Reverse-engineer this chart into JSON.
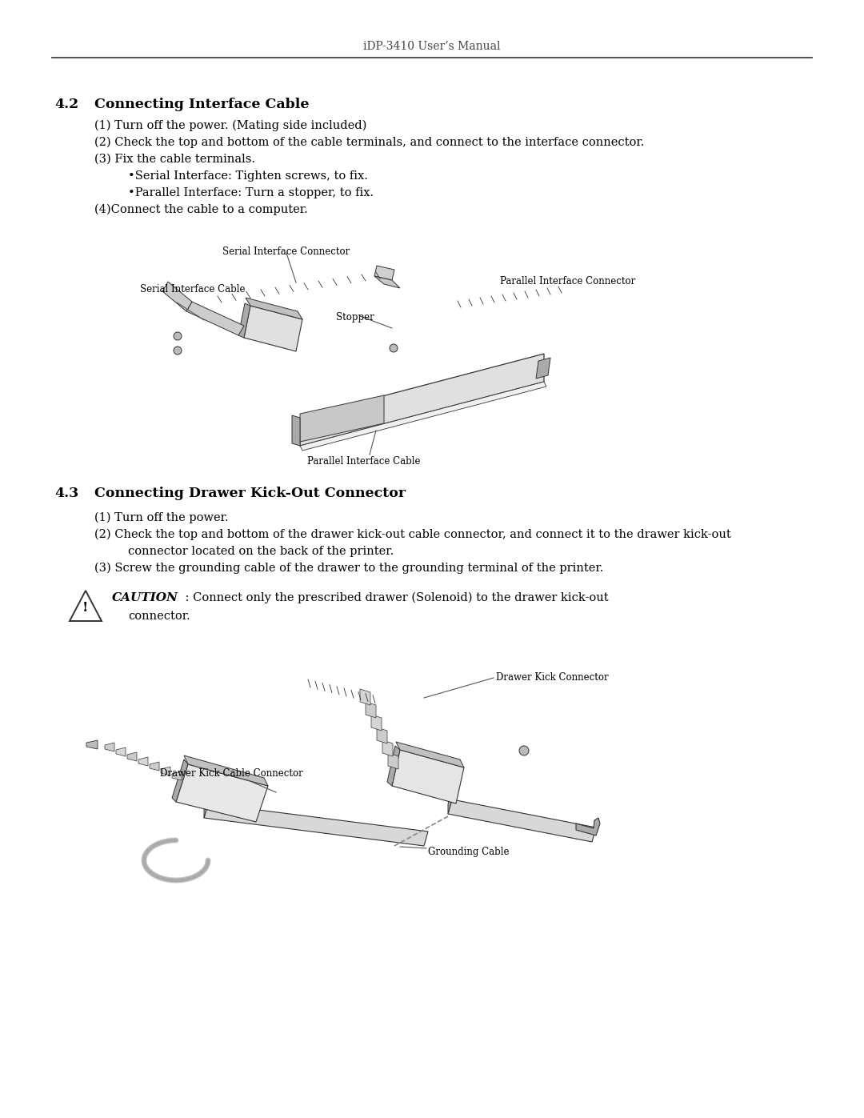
{
  "header_text": "iDP-3410 User’s Manual",
  "bg_color": "#ffffff",
  "text_color": "#000000",
  "section_42_num": "4.2",
  "section_42_head": "Connecting Interface Cable",
  "section_42_body": [
    "(1) Turn off the power. (Mating side included)",
    "(2) Check the top and bottom of the cable terminals, and connect to the interface connector.",
    "(3) Fix the cable terminals.",
    "•Serial Interface: Tighten screws, to fix.",
    "•Parallel Interface: Turn a stopper, to fix.",
    "(4)Connect the cable to a computer."
  ],
  "section_43_num": "4.3",
  "section_43_head": "Connecting Drawer Kick-Out Connector",
  "section_43_body_1": "(1) Turn off the power.",
  "section_43_body_2": "(2) Check the top and bottom of the drawer kick-out cable connector, and connect it to the drawer kick-out",
  "section_43_body_2b": "connector located on the back of the printer.",
  "section_43_body_3": "(3) Screw the grounding cable of the drawer to the grounding terminal of the printer.",
  "caution_bold": "CAUTION",
  "caution_rest": " : Connect only the prescribed drawer (Solenoid) to the drawer kick-out",
  "caution_line2": "connector.",
  "fig1_label_sic": "Serial Interface Cable",
  "fig1_label_siconn": "Serial Interface Connector",
  "fig1_label_stopper": "Stopper",
  "fig1_label_piconn": "Parallel Interface Connector",
  "fig1_label_pic": "Parallel Interface Cable",
  "fig2_label_dkconn": "Drawer Kick Connector",
  "fig2_label_dkcc": "Drawer Kick Cable Connector",
  "fig2_label_gc": "Grounding Cable",
  "line_color": "#555555",
  "fig_gray_light": "#d8d8d8",
  "fig_gray_mid": "#aaaaaa",
  "fig_gray_dark": "#666666",
  "fig_edge": "#333333"
}
